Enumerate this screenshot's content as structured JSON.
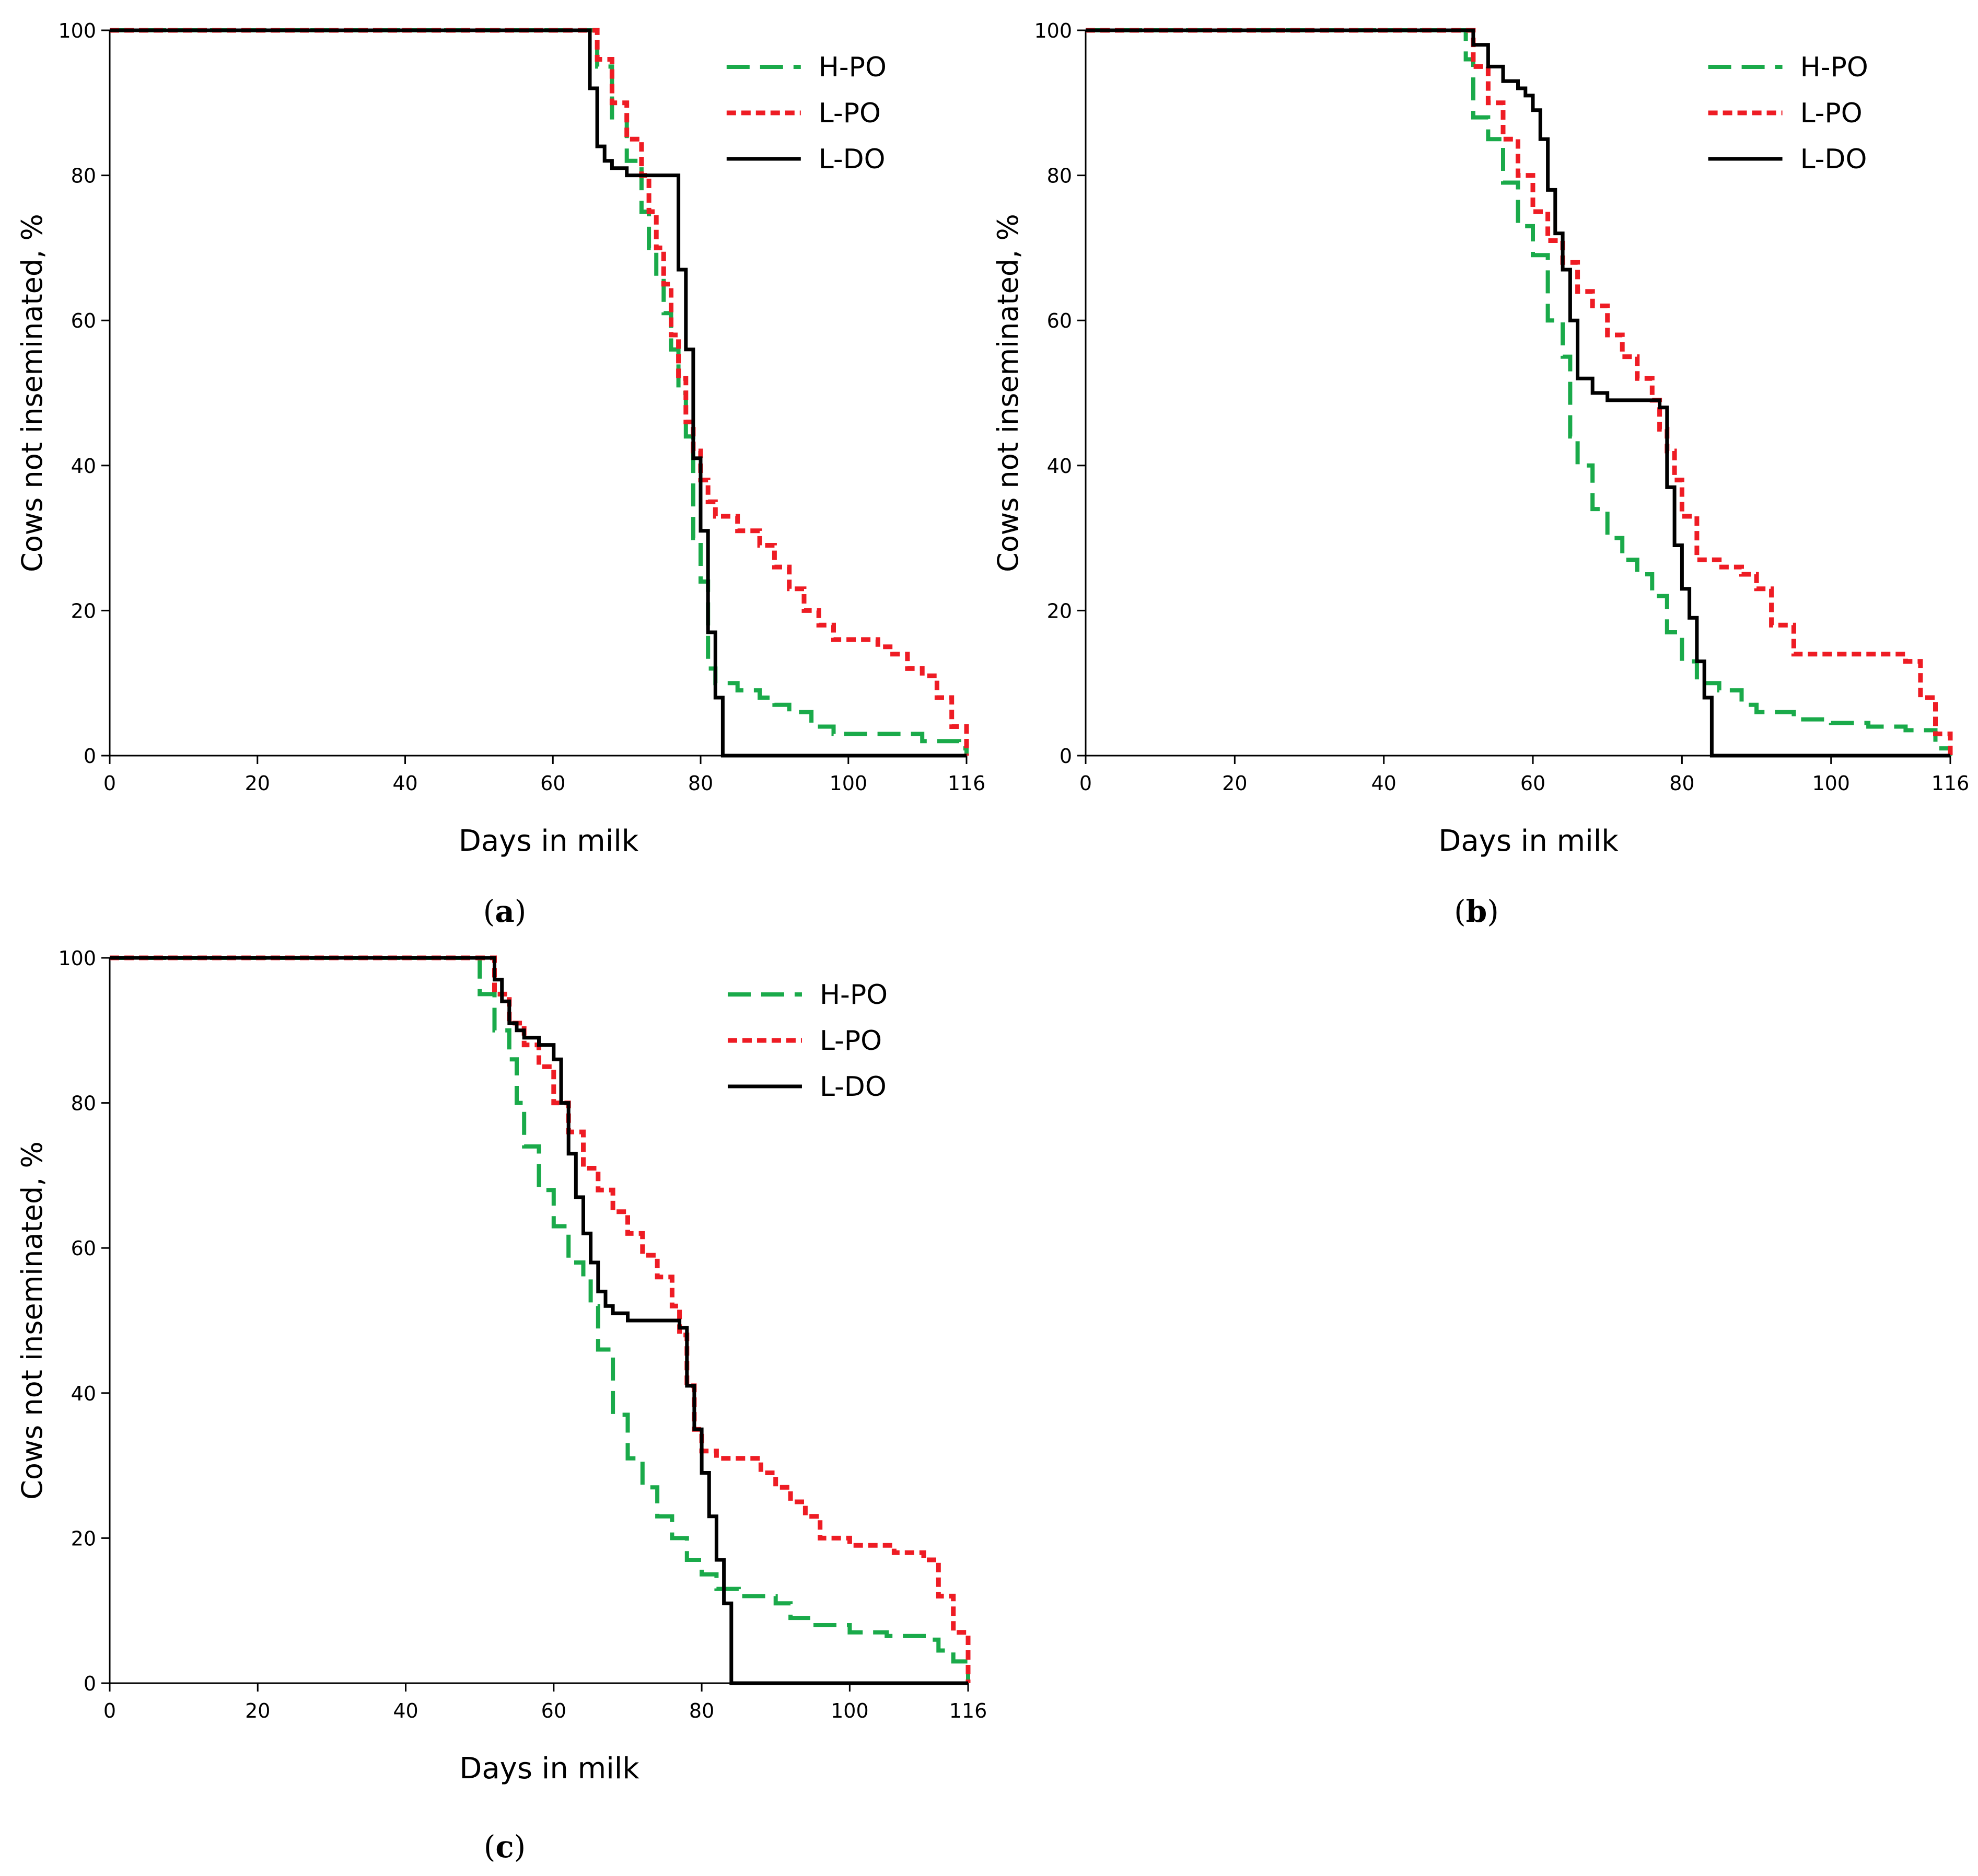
{
  "figure": {
    "panels": [
      {
        "id": "a",
        "caption_open": "(",
        "caption_letter": "a",
        "caption_close": ")"
      },
      {
        "id": "b",
        "caption_open": "(",
        "caption_letter": "b",
        "caption_close": ")"
      },
      {
        "id": "c",
        "caption_open": "(",
        "caption_letter": "c",
        "caption_close": ")"
      }
    ]
  },
  "colors": {
    "H-PO": "#1aaa4a",
    "L-PO": "#ee1c24",
    "L-DO": "#000000"
  },
  "chart_data": [
    {
      "type": "line",
      "panel": "a",
      "title": "",
      "xlabel": "Days in milk",
      "ylabel": "Cows not inseminated, %",
      "xlim": [
        0,
        116
      ],
      "ylim": [
        0,
        100
      ],
      "xticks": [
        0,
        20,
        40,
        60,
        80,
        100,
        116
      ],
      "yticks": [
        0,
        20,
        40,
        60,
        80,
        100
      ],
      "legend": "top-right",
      "series": [
        {
          "name": "H-PO",
          "style": "dashed",
          "x": [
            0,
            65,
            66,
            68,
            70,
            72,
            73,
            74,
            75,
            76,
            77,
            78,
            79,
            80,
            81,
            82,
            85,
            88,
            90,
            92,
            95,
            98,
            100,
            105,
            110,
            113,
            115,
            116
          ],
          "y": [
            100,
            100,
            95,
            88,
            82,
            75,
            70,
            66,
            61,
            56,
            50,
            44,
            30,
            24,
            12,
            10,
            9,
            8,
            7,
            6,
            4,
            3,
            3,
            3,
            2,
            2,
            1,
            0
          ]
        },
        {
          "name": "L-PO",
          "style": "dotted",
          "x": [
            0,
            65,
            66,
            68,
            70,
            72,
            73,
            74,
            75,
            76,
            77,
            78,
            79,
            80,
            81,
            82,
            85,
            88,
            90,
            92,
            94,
            96,
            98,
            100,
            102,
            104,
            106,
            108,
            110,
            112,
            114,
            116
          ],
          "y": [
            100,
            100,
            96,
            90,
            85,
            80,
            75,
            70,
            65,
            58,
            52,
            46,
            42,
            38,
            35,
            33,
            31,
            29,
            26,
            23,
            20,
            18,
            16,
            16,
            16,
            15,
            14,
            12,
            11,
            8,
            4,
            0
          ]
        },
        {
          "name": "L-DO",
          "style": "solid",
          "x": [
            0,
            64,
            65,
            66,
            67,
            68,
            70,
            72,
            75,
            76,
            77,
            78,
            79,
            80,
            81,
            82,
            83,
            84,
            116
          ],
          "y": [
            100,
            100,
            92,
            84,
            82,
            81,
            80,
            80,
            80,
            80,
            67,
            56,
            41,
            31,
            17,
            8,
            0,
            0,
            0
          ]
        }
      ]
    },
    {
      "type": "line",
      "panel": "b",
      "title": "",
      "xlabel": "Days in milk",
      "ylabel": "Cows not inseminated, %",
      "xlim": [
        0,
        116
      ],
      "ylim": [
        0,
        100
      ],
      "xticks": [
        0,
        20,
        40,
        60,
        80,
        100,
        116
      ],
      "yticks": [
        0,
        20,
        40,
        60,
        80,
        100
      ],
      "legend": "top-right",
      "series": [
        {
          "name": "H-PO",
          "style": "dashed",
          "x": [
            0,
            50,
            51,
            52,
            54,
            56,
            58,
            60,
            62,
            64,
            65,
            66,
            68,
            70,
            72,
            74,
            76,
            78,
            80,
            82,
            85,
            88,
            90,
            95,
            100,
            105,
            110,
            114,
            116
          ],
          "y": [
            100,
            100,
            96,
            88,
            85,
            79,
            73,
            69,
            60,
            55,
            44,
            40,
            34,
            30,
            27,
            25,
            22,
            17,
            13,
            10,
            9,
            7,
            6,
            5,
            4.5,
            4,
            3.5,
            1,
            0
          ]
        },
        {
          "name": "L-PO",
          "style": "dotted",
          "x": [
            0,
            50,
            52,
            54,
            56,
            58,
            60,
            62,
            64,
            66,
            68,
            70,
            72,
            74,
            76,
            77,
            78,
            79,
            80,
            82,
            85,
            88,
            90,
            92,
            95,
            100,
            105,
            110,
            112,
            114,
            116
          ],
          "y": [
            100,
            100,
            95,
            90,
            85,
            80,
            75,
            71,
            68,
            64,
            62,
            58,
            55,
            52,
            49,
            45,
            42,
            38,
            33,
            27,
            26,
            25,
            23,
            18,
            14,
            14,
            14,
            13,
            8,
            3,
            0
          ]
        },
        {
          "name": "L-DO",
          "style": "solid",
          "x": [
            0,
            51,
            52,
            54,
            56,
            58,
            59,
            60,
            61,
            62,
            63,
            64,
            65,
            66,
            68,
            70,
            72,
            74,
            76,
            77,
            78,
            79,
            80,
            81,
            82,
            83,
            84,
            116
          ],
          "y": [
            100,
            100,
            98,
            95,
            93,
            92,
            91,
            89,
            85,
            78,
            72,
            67,
            60,
            52,
            50,
            49,
            49,
            49,
            49,
            48,
            37,
            29,
            23,
            19,
            13,
            8,
            0,
            0
          ]
        }
      ]
    },
    {
      "type": "line",
      "panel": "c",
      "title": "",
      "xlabel": "Days in milk",
      "ylabel": "Cows not inseminated, %",
      "xlim": [
        0,
        116
      ],
      "ylim": [
        0,
        100
      ],
      "xticks": [
        0,
        20,
        40,
        60,
        80,
        100,
        116
      ],
      "yticks": [
        0,
        20,
        40,
        60,
        80,
        100
      ],
      "legend": "top-right",
      "series": [
        {
          "name": "H-PO",
          "style": "dashed",
          "x": [
            0,
            49,
            50,
            52,
            54,
            55,
            56,
            58,
            60,
            62,
            64,
            65,
            66,
            68,
            70,
            72,
            74,
            76,
            78,
            80,
            82,
            85,
            88,
            90,
            92,
            95,
            100,
            105,
            110,
            112,
            114,
            116
          ],
          "y": [
            100,
            100,
            95,
            90,
            86,
            80,
            74,
            68,
            63,
            58,
            56,
            52,
            46,
            37,
            31,
            27,
            23,
            20,
            17,
            15,
            13,
            12,
            12,
            11,
            9,
            8,
            7,
            6.5,
            6,
            4.5,
            3,
            0
          ]
        },
        {
          "name": "L-PO",
          "style": "dotted",
          "x": [
            0,
            51,
            52,
            54,
            56,
            58,
            60,
            62,
            64,
            66,
            68,
            70,
            72,
            74,
            76,
            77,
            78,
            79,
            80,
            82,
            85,
            88,
            90,
            92,
            94,
            96,
            98,
            100,
            102,
            104,
            106,
            108,
            110,
            112,
            114,
            116
          ],
          "y": [
            100,
            100,
            95,
            91,
            88,
            85,
            80,
            76,
            71,
            68,
            65,
            62,
            59,
            56,
            52,
            48,
            41,
            35,
            32,
            31,
            31,
            29,
            27,
            25,
            23,
            20,
            20,
            19,
            19,
            19,
            18,
            18,
            17,
            12,
            7,
            0
          ]
        },
        {
          "name": "L-DO",
          "style": "solid",
          "x": [
            0,
            51,
            52,
            53,
            54,
            55,
            56,
            58,
            60,
            61,
            62,
            63,
            64,
            65,
            66,
            67,
            68,
            70,
            72,
            74,
            76,
            77,
            78,
            79,
            80,
            81,
            82,
            83,
            84,
            116
          ],
          "y": [
            100,
            100,
            97,
            94,
            91,
            90,
            89,
            88,
            86,
            80,
            73,
            67,
            62,
            58,
            54,
            52,
            51,
            50,
            50,
            50,
            50,
            49,
            41,
            35,
            29,
            23,
            17,
            11,
            0,
            0
          ]
        }
      ]
    }
  ]
}
